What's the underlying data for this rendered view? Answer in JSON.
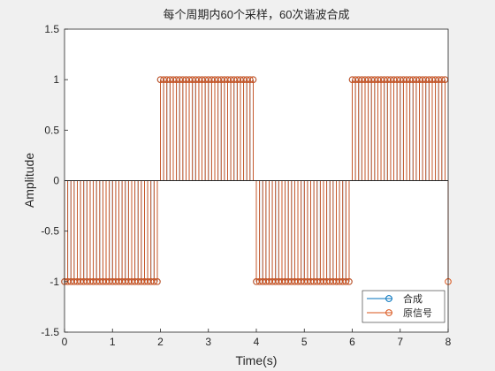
{
  "chart_data": {
    "type": "stem",
    "title": "每个周期内60个采样，60次谐波合成",
    "xlabel": "Time(s)",
    "ylabel": "Amplitude",
    "xlim": [
      0,
      8
    ],
    "ylim": [
      -1.5,
      1.5
    ],
    "xticks": [
      "0",
      "1",
      "2",
      "3",
      "4",
      "5",
      "6",
      "7",
      "8"
    ],
    "yticks": [
      "-1.5",
      "-1",
      "-0.5",
      "0",
      "0.5",
      "1",
      "1.5"
    ],
    "grid": false,
    "legend_position": "bottom-right",
    "series": [
      {
        "name": "合成",
        "color": "#0072BD",
        "segments": [
          {
            "x_start": 0.0,
            "x_end": 2.0,
            "value": -1
          },
          {
            "x_start": 2.0,
            "x_end": 4.0,
            "value": 1
          },
          {
            "x_start": 4.0,
            "x_end": 6.0,
            "value": -1
          },
          {
            "x_start": 6.0,
            "x_end": 8.0,
            "value": 1
          }
        ],
        "sample_step": 0.0667,
        "marker": "circle"
      },
      {
        "name": "原信号",
        "color": "#D95319",
        "segments": [
          {
            "x_start": 0.0,
            "x_end": 2.0,
            "value": -1
          },
          {
            "x_start": 2.0,
            "x_end": 4.0,
            "value": 1
          },
          {
            "x_start": 4.0,
            "x_end": 6.0,
            "value": -1
          },
          {
            "x_start": 6.0,
            "x_end": 8.0,
            "value": 1
          }
        ],
        "sample_step": 0.0667,
        "final_point": {
          "x": 8.0,
          "y": -1
        },
        "marker": "circle"
      }
    ]
  }
}
